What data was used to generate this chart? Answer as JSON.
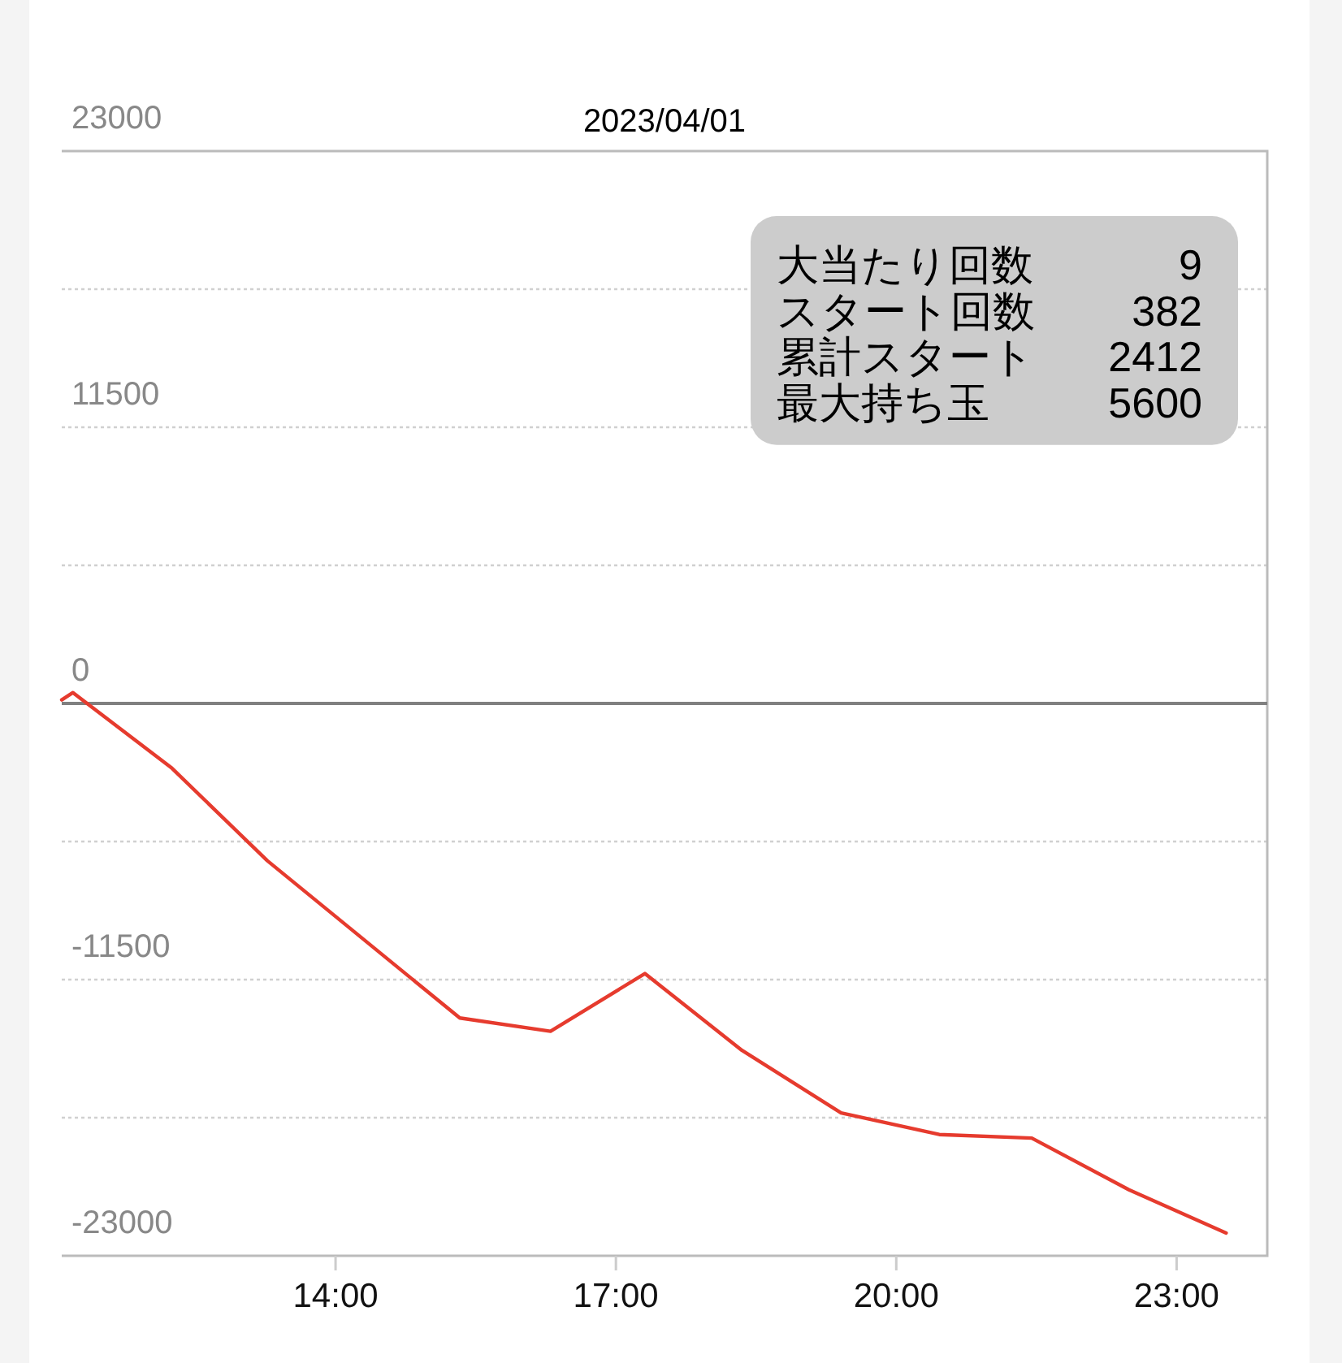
{
  "chart_data": {
    "type": "line",
    "title": "2023/04/01",
    "x": [
      11.07,
      11.19,
      12.25,
      13.27,
      15.33,
      16.3,
      17.31,
      18.35,
      19.41,
      20.46,
      21.45,
      22.49,
      23.53
    ],
    "values": [
      150,
      450,
      -2700,
      -6550,
      -13100,
      -13650,
      -11250,
      -14450,
      -17050,
      -17950,
      -18100,
      -20250,
      -22050
    ],
    "color": "#e63b2e",
    "xlim": [
      11.07,
      23.97
    ],
    "ylim": [
      -23000,
      23000
    ],
    "xticks": [
      {
        "value": 14,
        "label": "14:00"
      },
      {
        "value": 17,
        "label": "17:00"
      },
      {
        "value": 20,
        "label": "20:00"
      },
      {
        "value": 23,
        "label": "23:00"
      }
    ],
    "yticks": [
      -23000,
      {
        "value": -17250,
        "label": null
      },
      -11500,
      {
        "value": -5750,
        "label": null
      },
      0,
      {
        "value": 5750,
        "label": null
      },
      11500,
      {
        "value": 17250,
        "label": null
      },
      23000
    ],
    "grid": "y",
    "ref_lines": [
      {
        "axis": "y",
        "value": 0,
        "color": "#808080"
      }
    ],
    "annotations": [
      "大当たり回数",
      "9",
      "スタート回数",
      "382",
      "累計スタート",
      "2412",
      "最大持ち玉",
      "5600"
    ]
  }
}
